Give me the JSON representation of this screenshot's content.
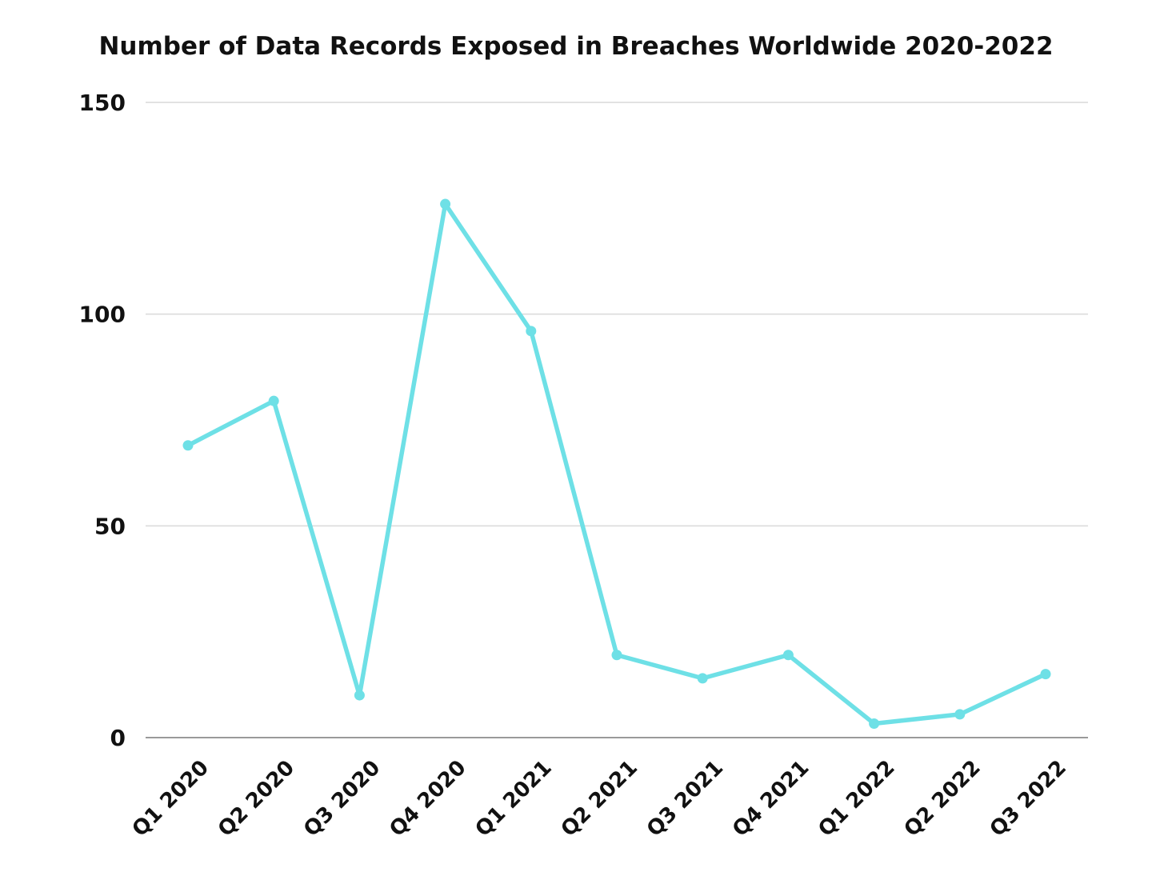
{
  "chart_data": {
    "type": "line",
    "title": "Number of Data Records Exposed in Breaches Worldwide 2020-2022",
    "xlabel": "",
    "ylabel": "",
    "categories": [
      "Q1 2020",
      "Q2 2020",
      "Q3 2020",
      "Q4 2020",
      "Q1 2021",
      "Q2 2021",
      "Q3 2021",
      "Q4 2021",
      "Q1 2022",
      "Q2 2022",
      "Q3 2022"
    ],
    "series": [
      {
        "values": [
          69,
          79.5,
          10,
          126,
          96,
          19.5,
          14,
          19.5,
          3.3,
          5.5,
          15
        ],
        "color": "#6ee0e6"
      }
    ],
    "ylim": [
      0,
      150
    ],
    "yticks": [
      "0",
      "50",
      "100",
      "150"
    ],
    "ytick_values": [
      0,
      50,
      100,
      150
    ],
    "grid": true,
    "legend": "none"
  }
}
